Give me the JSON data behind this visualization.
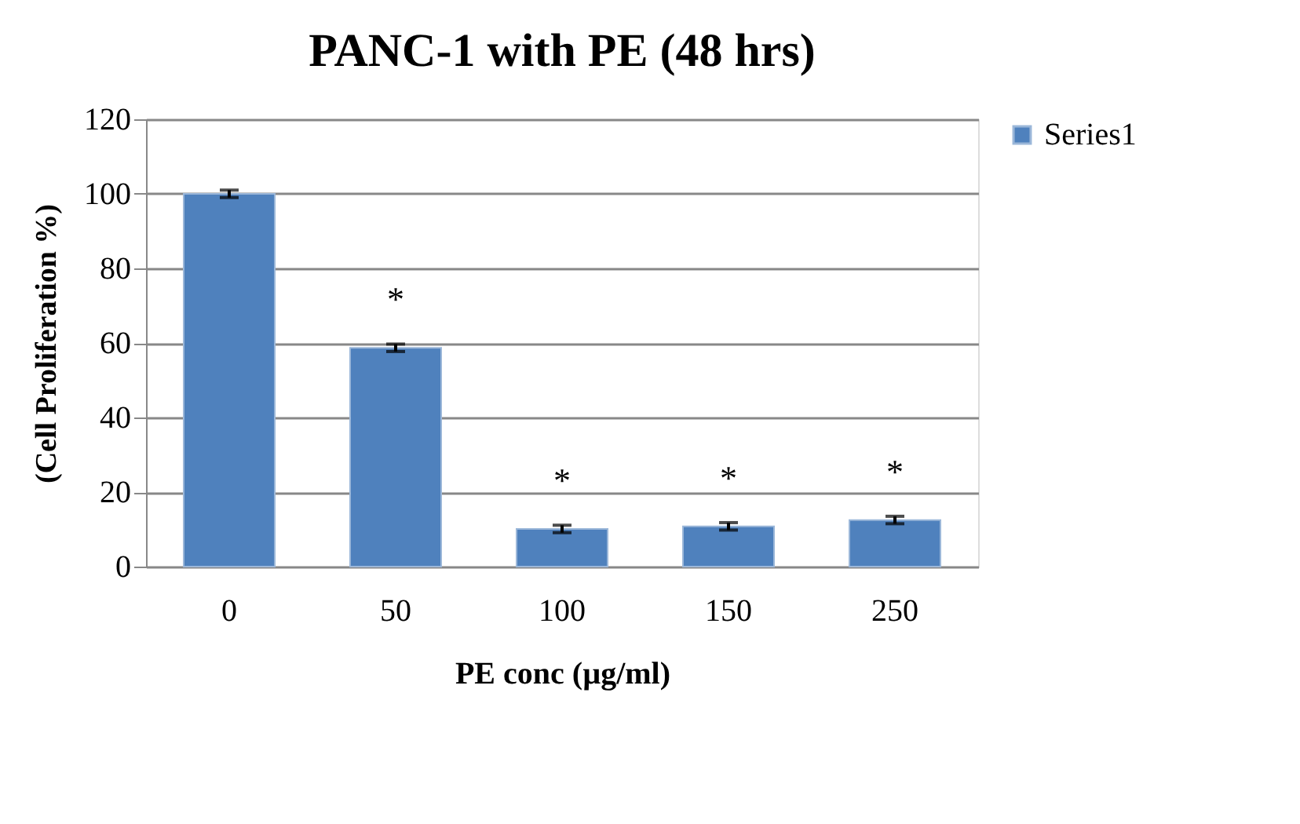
{
  "chart_data": {
    "type": "bar",
    "title": "PANC-1 with PE (48 hrs)",
    "xlabel": "PE conc (µg/ml)",
    "ylabel": "(Cell Proliferation %)",
    "categories": [
      "0",
      "50",
      "100",
      "150",
      "250"
    ],
    "series": [
      {
        "name": "Series1",
        "color": "#4f81bd",
        "values": [
          100,
          58.7,
          10.1,
          10.8,
          12.5
        ],
        "errors": [
          1,
          1,
          1,
          1,
          1
        ]
      }
    ],
    "annotations": [
      "*",
      "*",
      "*",
      "*"
    ],
    "ylim": [
      0,
      120
    ],
    "yticks": [
      0,
      20,
      40,
      60,
      80,
      100,
      120
    ],
    "grid": "y",
    "legend": "right"
  }
}
